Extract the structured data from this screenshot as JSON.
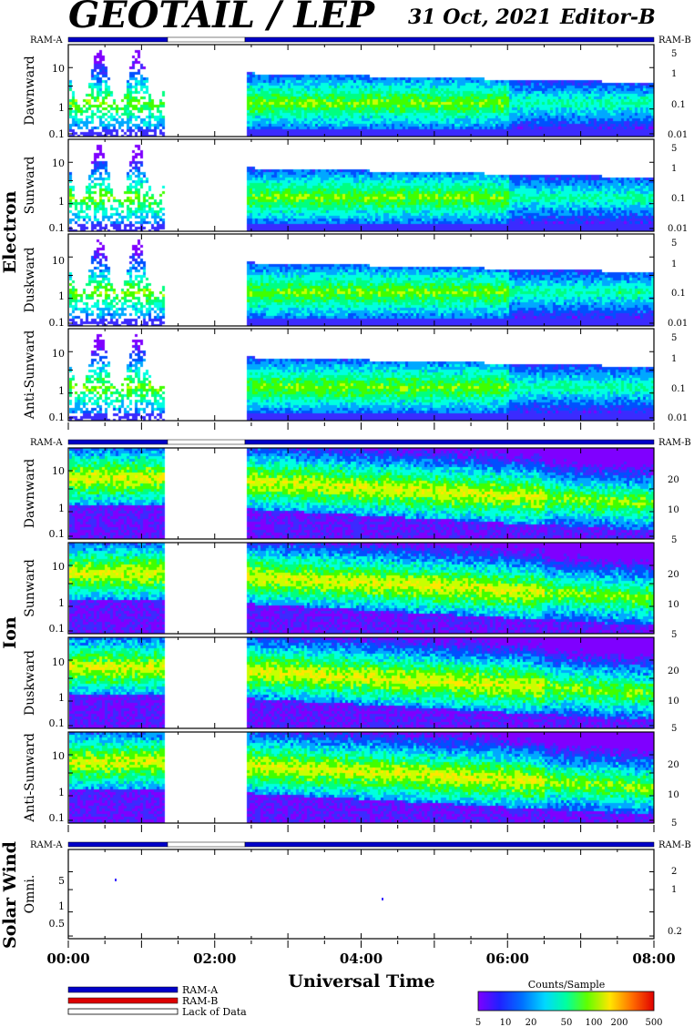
{
  "header": {
    "title": "GEOTAIL / LEP",
    "date": "31 Oct, 2021",
    "editor": "Editor-B"
  },
  "ram_labels": {
    "a": "RAM-A",
    "b": "RAM-B"
  },
  "groups": [
    {
      "label": "Electron",
      "left_ticks": [
        "10",
        "1",
        "0.1"
      ],
      "right_ticks": [
        "5",
        "1",
        "0.1",
        "0.01"
      ],
      "panels": [
        "Dawnward",
        "Sunward",
        "Duskward",
        "Anti-Sunward"
      ]
    },
    {
      "label": "Ion",
      "left_ticks": [
        "10",
        "1",
        "0.1"
      ],
      "right_ticks": [
        "20",
        "10",
        "5"
      ],
      "panels": [
        "Dawnward",
        "Sunward",
        "Duskward",
        "Anti-Sunward"
      ]
    },
    {
      "label": "Solar Wind",
      "left_ticks": [
        "5",
        "1",
        "0.5"
      ],
      "right_ticks": [
        "2",
        "1",
        "0.2"
      ],
      "panels": [
        "Omni."
      ]
    }
  ],
  "x_axis": {
    "label": "Universal Time",
    "ticks": [
      "00:00",
      "02:00",
      "04:00",
      "06:00",
      "08:00"
    ]
  },
  "legend": {
    "items": [
      {
        "label": "RAM-A",
        "color": "#0000c8"
      },
      {
        "label": "RAM-B",
        "color": "#dc0000"
      },
      {
        "label": "Lack of Data",
        "color": "#ffffff"
      }
    ]
  },
  "colorbar": {
    "title": "Counts/Sample",
    "ticks": [
      "5",
      "10",
      "20",
      "50",
      "100",
      "200",
      "500"
    ],
    "colors": [
      "#7f00ff",
      "#3b2bff",
      "#0050ff",
      "#00a8ff",
      "#00ffe0",
      "#00ff80",
      "#40ff00",
      "#c8ff00",
      "#ffe600",
      "#ff8c00",
      "#ff2a00",
      "#e00000"
    ]
  },
  "chart_data": {
    "type": "heatmap",
    "x_range_hours": [
      0,
      8
    ],
    "data_gap_hours": [
      1.3,
      2.4
    ],
    "ram_mode": "RAM-A throughout; no data between 1.3 h and 2.4 h"
  }
}
